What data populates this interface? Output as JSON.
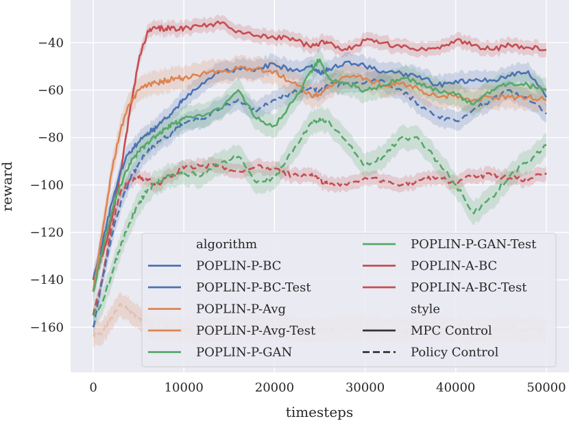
{
  "chart_data": {
    "type": "line",
    "xlabel": "timesteps",
    "ylabel": "reward",
    "xlim": [
      -2500,
      52500
    ],
    "ylim": [
      -179,
      -22
    ],
    "xticks": [
      0,
      10000,
      20000,
      30000,
      40000,
      50000
    ],
    "xtick_labels": [
      "0",
      "10000",
      "20000",
      "30000",
      "40000",
      "50000"
    ],
    "yticks": [
      -160,
      -140,
      -120,
      -100,
      -80,
      -60,
      -40
    ],
    "ytick_labels": [
      "−160",
      "−140",
      "−120",
      "−100",
      "−80",
      "−60",
      "−40"
    ],
    "grid": true,
    "legend_position": "lower-right",
    "legend": {
      "col1": [
        {
          "kind": "header",
          "label": "algorithm"
        },
        {
          "kind": "series",
          "label": "POPLIN-P-BC",
          "color": "#4c72b0",
          "dash": false
        },
        {
          "kind": "series",
          "label": "POPLIN-P-BC-Test",
          "color": "#4c72b0",
          "dash": false
        },
        {
          "kind": "series",
          "label": "POPLIN-P-Avg",
          "color": "#dd8452",
          "dash": false
        },
        {
          "kind": "series",
          "label": "POPLIN-P-Avg-Test",
          "color": "#dd8452",
          "dash": false
        },
        {
          "kind": "series",
          "label": "POPLIN-P-GAN",
          "color": "#55a868",
          "dash": false
        }
      ],
      "col2": [
        {
          "kind": "series",
          "label": "POPLIN-P-GAN-Test",
          "color": "#55a868",
          "dash": false
        },
        {
          "kind": "series",
          "label": "POPLIN-A-BC",
          "color": "#c44e52",
          "dash": false
        },
        {
          "kind": "series",
          "label": "POPLIN-A-BC-Test",
          "color": "#c44e52",
          "dash": false
        },
        {
          "kind": "header",
          "label": "style"
        },
        {
          "kind": "style",
          "label": "MPC Control",
          "color": "#333333",
          "dash": false
        },
        {
          "kind": "style",
          "label": "Policy Control",
          "color": "#333333",
          "dash": true
        }
      ]
    },
    "x": [
      0,
      1000,
      2000,
      3000,
      4000,
      5000,
      6000,
      7000,
      8000,
      9000,
      10000,
      12000,
      14000,
      16000,
      18000,
      20000,
      22000,
      24000,
      25000,
      26000,
      28000,
      30000,
      32000,
      34000,
      36000,
      38000,
      40000,
      42000,
      44000,
      46000,
      48000,
      50000
    ],
    "series": [
      {
        "name": "POPLIN-A-BC",
        "style": "MPC Control",
        "color": "#c44e52",
        "band": 3,
        "values": [
          -140,
          -130,
          -115,
          -95,
          -70,
          -48,
          -35,
          -34,
          -34,
          -34,
          -34,
          -33,
          -32,
          -35,
          -37,
          -38,
          -38,
          -42,
          -40,
          -40,
          -43,
          -39,
          -40,
          -42,
          -43,
          -42,
          -39,
          -41,
          -43,
          -41,
          -42,
          -43
        ]
      },
      {
        "name": "POPLIN-A-BC-Test",
        "style": "Policy Control",
        "color": "#c44e52",
        "band": 3,
        "values": [
          -155,
          -140,
          -118,
          -103,
          -98,
          -97,
          -98,
          -100,
          -97,
          -95,
          -93,
          -92,
          -92,
          -94,
          -92,
          -93,
          -96,
          -96,
          -98,
          -100,
          -100,
          -97,
          -98,
          -100,
          -98,
          -97,
          -99,
          -96,
          -96,
          -97,
          -98,
          -95
        ]
      },
      {
        "name": "POPLIN-P-BC",
        "style": "MPC Control",
        "color": "#4c72b0",
        "band": 4,
        "values": [
          -140,
          -125,
          -108,
          -94,
          -86,
          -82,
          -78,
          -76,
          -72,
          -68,
          -64,
          -57,
          -52,
          -51,
          -51,
          -49,
          -52,
          -50,
          -53,
          -51,
          -48,
          -50,
          -52,
          -53,
          -54,
          -58,
          -56,
          -56,
          -56,
          -54,
          -52,
          -63
        ]
      },
      {
        "name": "POPLIN-P-BC-Test",
        "style": "Policy Control",
        "color": "#4c72b0",
        "band": 4,
        "values": [
          -160,
          -140,
          -122,
          -108,
          -98,
          -91,
          -86,
          -83,
          -80,
          -77,
          -74,
          -72,
          -68,
          -64,
          -69,
          -64,
          -61,
          -59,
          -60,
          -58,
          -57,
          -57,
          -56,
          -60,
          -66,
          -71,
          -73,
          -68,
          -64,
          -60,
          -64,
          -70
        ]
      },
      {
        "name": "POPLIN-P-Avg",
        "style": "MPC Control",
        "color": "#dd8452",
        "band": 5,
        "values": [
          -145,
          -120,
          -95,
          -77,
          -66,
          -60,
          -58,
          -57,
          -56,
          -55,
          -55,
          -53,
          -52,
          -51,
          -51,
          -52,
          -57,
          -62,
          -62,
          -58,
          -54,
          -55,
          -58,
          -57,
          -60,
          -63,
          -62,
          -64,
          -63,
          -63,
          -63,
          -64
        ]
      },
      {
        "name": "POPLIN-P-Avg-Test",
        "style": "Policy Control",
        "color": "#dd8452",
        "band": 5,
        "values": [
          -163,
          -162,
          -156,
          -150,
          -153,
          -156,
          -159,
          -160,
          -160,
          -161,
          -161,
          -161,
          -161,
          -160,
          -160,
          -160,
          -161,
          -161,
          -161,
          -161,
          -160,
          -160,
          -161,
          -161,
          -161,
          -160,
          -161,
          -161,
          -161,
          -160,
          -161,
          -161
        ]
      },
      {
        "name": "POPLIN-P-GAN",
        "style": "MPC Control",
        "color": "#55a868",
        "band": 5,
        "values": [
          -145,
          -128,
          -112,
          -100,
          -91,
          -86,
          -82,
          -79,
          -76,
          -74,
          -72,
          -71,
          -68,
          -60,
          -72,
          -75,
          -65,
          -52,
          -47,
          -55,
          -57,
          -60,
          -58,
          -55,
          -57,
          -60,
          -62,
          -66,
          -60,
          -57,
          -58,
          -60
        ]
      },
      {
        "name": "POPLIN-P-GAN-Test",
        "style": "Policy Control",
        "color": "#55a868",
        "band": 5,
        "values": [
          -155,
          -150,
          -138,
          -126,
          -116,
          -108,
          -102,
          -99,
          -97,
          -96,
          -95,
          -96,
          -91,
          -88,
          -99,
          -97,
          -86,
          -74,
          -72,
          -73,
          -82,
          -92,
          -88,
          -80,
          -81,
          -90,
          -100,
          -112,
          -105,
          -96,
          -90,
          -83
        ]
      }
    ]
  }
}
